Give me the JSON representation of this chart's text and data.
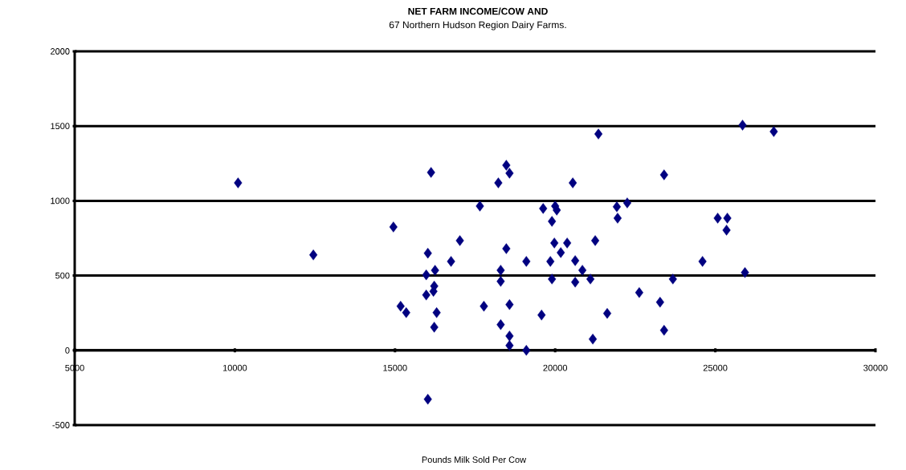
{
  "chart_data": {
    "type": "scatter",
    "title": "NET FARM INCOME/COW AND",
    "subtitle": "67 Northern Hudson Region Dairy Farms.",
    "xlabel": "Pounds Milk Sold Per Cow",
    "x": [
      10100,
      12450,
      14950,
      16125,
      16025,
      15975,
      16250,
      16225,
      15975,
      16200,
      15175,
      15350,
      16300,
      16225,
      16025,
      16750,
      17025,
      17650,
      17775,
      18225,
      18475,
      18575,
      18475,
      18300,
      18300,
      18575,
      18300,
      18575,
      18575,
      19100,
      19100,
      19575,
      19625,
      20000,
      20050,
      19900,
      19975,
      20375,
      20175,
      19850,
      19900,
      20625,
      20850,
      20625,
      21100,
      20550,
      21350,
      21250,
      21175,
      21625,
      21925,
      22250,
      21950,
      22625,
      23400,
      23275,
      23400,
      23675,
      24600,
      25075,
      25375,
      25350,
      25850,
      26825,
      25925
    ],
    "values": [
      1120,
      638,
      825,
      1190,
      650,
      505,
      535,
      430,
      370,
      395,
      295,
      252,
      252,
      155,
      -327,
      595,
      734,
      965,
      295,
      1120,
      1238,
      1185,
      680,
      536,
      461,
      306,
      172,
      96,
      32,
      0,
      595,
      236,
      949,
      965,
      938,
      863,
      718,
      718,
      654,
      595,
      477,
      600,
      536,
      456,
      477,
      1120,
      1447,
      734,
      75,
      247,
      960,
      986,
      884,
      386,
      1174,
      322,
      134,
      477,
      595,
      884,
      884,
      804,
      1506,
      1463,
      520
    ],
    "color": "#000080",
    "marker": "diamond",
    "grid": "y",
    "xlim": [
      5000,
      30000
    ],
    "ylim": [
      -500,
      2000
    ],
    "xticks": [
      5000,
      10000,
      15000,
      20000,
      25000,
      30000
    ],
    "yticks": [
      -500,
      0,
      500,
      1000,
      1500,
      2000
    ]
  }
}
